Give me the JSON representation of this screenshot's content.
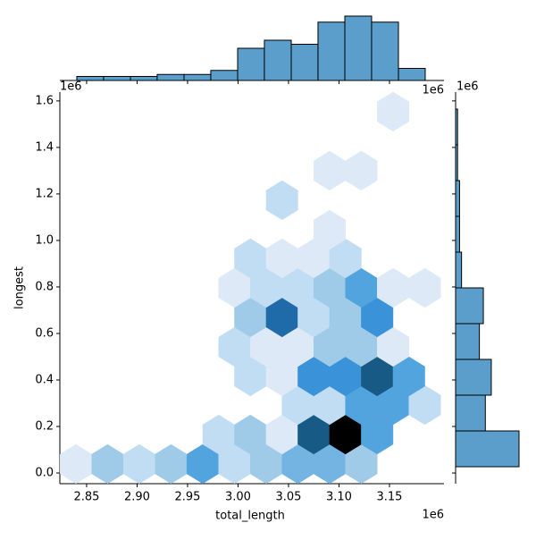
{
  "chart_data": {
    "type": "hexbin",
    "xlabel": "total_length",
    "ylabel": "longest",
    "x_offset": "1e6",
    "y_offset": "1e6",
    "xlim": [
      2823500,
      3204000
    ],
    "ylim": [
      -46000,
      1638000
    ],
    "xticks": [
      {
        "value": 2850000,
        "label": "2.85"
      },
      {
        "value": 2900000,
        "label": "2.90"
      },
      {
        "value": 2950000,
        "label": "2.95"
      },
      {
        "value": 3000000,
        "label": "3.00"
      },
      {
        "value": 3050000,
        "label": "3.05"
      },
      {
        "value": 3100000,
        "label": "3.10"
      },
      {
        "value": 3150000,
        "label": "3.15"
      }
    ],
    "yticks": [
      {
        "value": 0,
        "label": "0.0"
      },
      {
        "value": 200000,
        "label": "0.2"
      },
      {
        "value": 400000,
        "label": "0.4"
      },
      {
        "value": 600000,
        "label": "0.6"
      },
      {
        "value": 800000,
        "label": "0.8"
      },
      {
        "value": 1000000,
        "label": "1.0"
      },
      {
        "value": 1200000,
        "label": "1.2"
      },
      {
        "value": 1400000,
        "label": "1.4"
      },
      {
        "value": 1600000,
        "label": "1.6"
      }
    ],
    "cmap": [
      "#dde9f6",
      "#c0ddf3",
      "#9fcbe9",
      "#74b4e3",
      "#52a4de",
      "#3a93d8",
      "#2c7dc2",
      "#1f6aa8",
      "#185a86",
      "#000000"
    ],
    "hex_x": [
      2839400,
      2870800,
      2902200,
      2933600,
      2965000,
      2996500,
      3027900,
      3059300,
      3090700,
      3122100,
      2980800,
      3012200,
      3043600,
      3075000,
      3106400,
      3137800,
      3059300,
      3090700,
      3122100,
      3153600,
      3185000,
      3012200,
      3043600,
      3075000,
      3106400,
      3137800,
      3169300,
      2996500,
      3027900,
      3059300,
      3090700,
      3122100,
      3153600,
      3012200,
      3043600,
      3075000,
      3106400,
      3137800,
      2996500,
      3027900,
      3059300,
      3090700,
      3122100,
      3153600,
      3185000,
      3012200,
      3043600,
      3075000,
      3106400,
      3090700,
      3043600,
      3090700,
      3122100,
      3153600
    ],
    "hex_y": [
      38500,
      38500,
      38500,
      38500,
      38500,
      38500,
      38500,
      38500,
      38500,
      38500,
      165400,
      165400,
      165400,
      165400,
      165400,
      165400,
      292300,
      292300,
      292300,
      292300,
      292300,
      415400,
      415400,
      415400,
      415400,
      415400,
      415400,
      542300,
      542300,
      542300,
      542300,
      542300,
      542300,
      669200,
      669200,
      669200,
      669200,
      669200,
      796100,
      796100,
      796100,
      796100,
      796100,
      796100,
      796100,
      923100,
      923100,
      923100,
      923100,
      1046100,
      1173000,
      1299900,
      1299900,
      1553800
    ],
    "counts": [
      1,
      3,
      2,
      3,
      5,
      2,
      3,
      4,
      4,
      3,
      2,
      3,
      1,
      9,
      10,
      5,
      2,
      2,
      5,
      5,
      2,
      2,
      1,
      6,
      6,
      9,
      5,
      2,
      1,
      1,
      3,
      3,
      1,
      3,
      8,
      2,
      3,
      6,
      1,
      2,
      2,
      3,
      5,
      1,
      1,
      2,
      1,
      1,
      2,
      1,
      2,
      1,
      1,
      1
    ],
    "bar_color": "#5b9ecb",
    "top_hist": {
      "bins": [
        2840300,
        2866800,
        2893400,
        2919900,
        2946500,
        2973000,
        2999600,
        3026100,
        3052700,
        3079200,
        3105800,
        3132300,
        3158900,
        3185400
      ],
      "counts": [
        2,
        2,
        2,
        3,
        3,
        5,
        16,
        20,
        18,
        29,
        32,
        29,
        6
      ]
    },
    "right_hist": {
      "bins": [
        26900,
        180800,
        334600,
        488400,
        642200,
        796000,
        949800,
        1103600,
        1257400,
        1411200,
        1565000
      ],
      "counts": [
        32,
        15,
        18,
        12,
        14,
        3,
        2,
        2,
        1,
        1
      ]
    }
  }
}
